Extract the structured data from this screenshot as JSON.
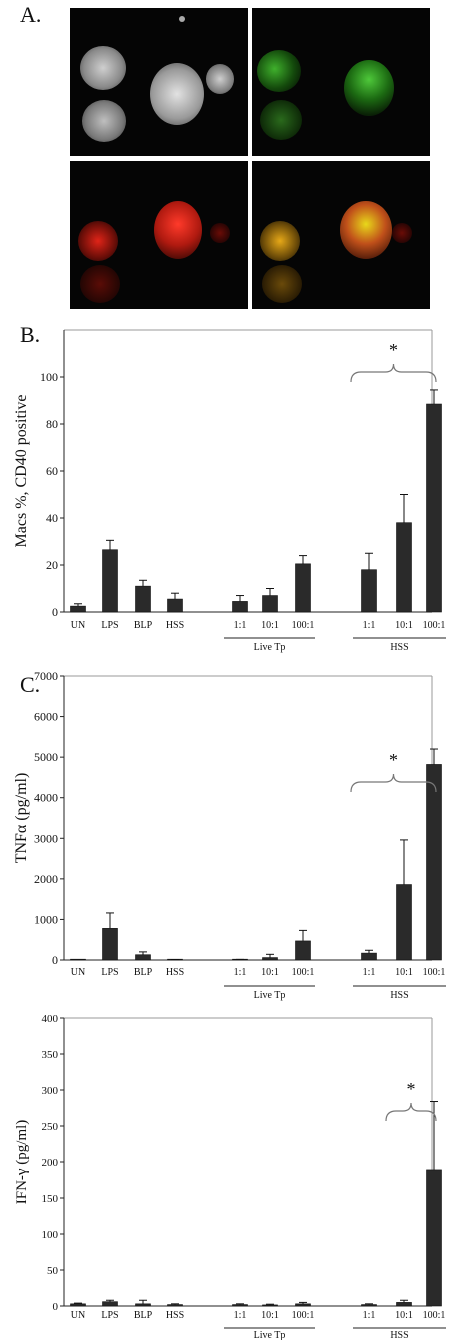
{
  "panels": {
    "a": "A.",
    "b": "B.",
    "c": "C."
  },
  "categories": [
    "UN",
    "LPS",
    "BLP",
    "HSS",
    "1:1",
    "10:1",
    "100:1",
    "1:1",
    "10:1",
    "100:1"
  ],
  "groups": {
    "live": "Live Tp",
    "hss": "HSS"
  },
  "star": "*",
  "chart_data": [
    {
      "type": "bar",
      "ylabel": "Macs %, CD40 positive",
      "ylim": [
        0,
        120
      ],
      "yticks": [
        0,
        20,
        40,
        60,
        80,
        100
      ],
      "categories": [
        "UN",
        "LPS",
        "BLP",
        "HSS",
        "1:1",
        "10:1",
        "100:1",
        "1:1",
        "10:1",
        "100:1"
      ],
      "group_labels": [
        "Live Tp",
        "HSS"
      ],
      "values": [
        2.5,
        26.5,
        11,
        5.5,
        4.5,
        7,
        20.5,
        18,
        38,
        88.5
      ],
      "errors": [
        1,
        4,
        2.5,
        2.5,
        2.5,
        3,
        3.5,
        7,
        12,
        6
      ],
      "significance": "*"
    },
    {
      "type": "bar",
      "ylabel": "TNFα (pg/ml)",
      "ylim": [
        0,
        7000
      ],
      "yticks": [
        0,
        1000,
        2000,
        3000,
        4000,
        5000,
        6000,
        7000
      ],
      "categories": [
        "UN",
        "LPS",
        "BLP",
        "HSS",
        "1:1",
        "10:1",
        "100:1",
        "1:1",
        "10:1",
        "100:1"
      ],
      "group_labels": [
        "Live Tp",
        "HSS"
      ],
      "values": [
        0,
        780,
        130,
        5,
        10,
        60,
        470,
        170,
        1860,
        4820
      ],
      "errors": [
        0,
        380,
        70,
        5,
        5,
        80,
        260,
        70,
        1100,
        380
      ],
      "significance": "*"
    },
    {
      "type": "bar",
      "ylabel": "IFN-γ (pg/ml)",
      "ylim": [
        0,
        400
      ],
      "yticks": [
        0,
        50,
        100,
        150,
        200,
        250,
        300,
        350,
        400
      ],
      "categories": [
        "UN",
        "LPS",
        "BLP",
        "HSS",
        "1:1",
        "10:1",
        "100:1",
        "1:1",
        "10:1",
        "100:1"
      ],
      "group_labels": [
        "Live Tp",
        "HSS"
      ],
      "values": [
        3,
        6,
        3,
        2,
        2,
        1.5,
        3,
        2,
        5,
        189
      ],
      "errors": [
        1,
        2,
        5,
        1,
        1,
        1,
        2,
        1,
        3,
        95
      ],
      "significance": "*"
    }
  ]
}
